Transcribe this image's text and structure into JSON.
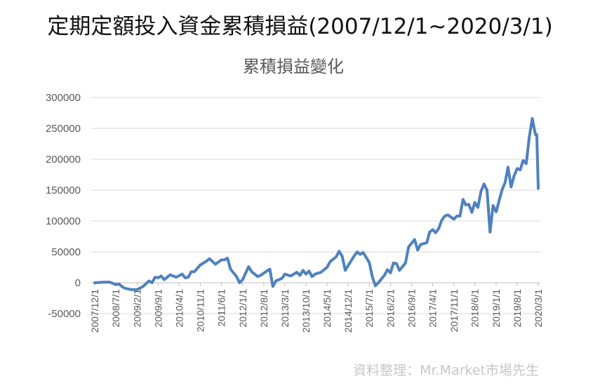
{
  "page_title": "定期定額投入資金累積損益(2007/12/1~2020/3/1)",
  "credit": "資料整理：Mr.Market市場先生",
  "colors": {
    "line": "#4f81bd",
    "grid": "#d9d9d9",
    "axis_text": "#595959",
    "credit": "#c7c7c7"
  },
  "chart_data": {
    "type": "line",
    "title": "累積損益變化",
    "xlabel": "",
    "ylabel": "",
    "ylim": [
      -50000,
      300000
    ],
    "y_ticks": [
      300000,
      250000,
      200000,
      150000,
      100000,
      50000,
      0,
      -50000
    ],
    "y_tick_labels": [
      "300000",
      "250000",
      "200000",
      "150000",
      "100000",
      "50000",
      "0",
      "-50000"
    ],
    "x_tick_labels": [
      "2007/12/1",
      "2008/7/1",
      "2009/2/1",
      "2009/9/1",
      "2010/4/1",
      "2010/11/1",
      "2011/6/1",
      "2012/1/1",
      "2012/8/1",
      "2013/3/1",
      "2013/10/1",
      "2014/5/1",
      "2014/12/1",
      "2015/7/1",
      "2016/2/1",
      "2016/9/1",
      "2017/4/1",
      "2017/11/1",
      "2018/6/1",
      "2019/1/1",
      "2019/8/1",
      "2020/3/1"
    ],
    "grid": true,
    "legend": "none",
    "series": [
      {
        "points": [
          [
            "2007/12/1",
            0
          ],
          [
            "2008/3/1",
            1000
          ],
          [
            "2008/5/1",
            1000
          ],
          [
            "2008/7/1",
            -3000
          ],
          [
            "2008/8/1",
            -2000
          ],
          [
            "2008/9/1",
            -6000
          ],
          [
            "2008/10/1",
            -9000
          ],
          [
            "2008/12/1",
            -11000
          ],
          [
            "2009/2/1",
            -11000
          ],
          [
            "2009/4/1",
            -6000
          ],
          [
            "2009/6/1",
            3000
          ],
          [
            "2009/7/1",
            0
          ],
          [
            "2009/8/1",
            9000
          ],
          [
            "2009/9/1",
            8000
          ],
          [
            "2009/10/1",
            11000
          ],
          [
            "2009/11/1",
            5000
          ],
          [
            "2010/1/1",
            13000
          ],
          [
            "2010/3/1",
            9000
          ],
          [
            "2010/5/1",
            14000
          ],
          [
            "2010/6/1",
            8000
          ],
          [
            "2010/7/1",
            9000
          ],
          [
            "2010/8/1",
            18000
          ],
          [
            "2010/9/1",
            18000
          ],
          [
            "2010/11/1",
            29000
          ],
          [
            "2011/1/1",
            35000
          ],
          [
            "2011/2/1",
            39000
          ],
          [
            "2011/4/1",
            30000
          ],
          [
            "2011/6/1",
            37000
          ],
          [
            "2011/7/1",
            37000
          ],
          [
            "2011/8/1",
            40000
          ],
          [
            "2011/9/1",
            22000
          ],
          [
            "2011/11/1",
            10000
          ],
          [
            "2011/12/1",
            0
          ],
          [
            "2012/1/1",
            5000
          ],
          [
            "2012/3/1",
            26000
          ],
          [
            "2012/4/1",
            18000
          ],
          [
            "2012/6/1",
            10000
          ],
          [
            "2012/7/1",
            12000
          ],
          [
            "2012/9/1",
            19000
          ],
          [
            "2012/10/1",
            22000
          ],
          [
            "2012/11/1",
            -6000
          ],
          [
            "2012/12/1",
            3000
          ],
          [
            "2013/2/1",
            7000
          ],
          [
            "2013/3/1",
            14000
          ],
          [
            "2013/5/1",
            11000
          ],
          [
            "2013/7/1",
            17000
          ],
          [
            "2013/8/1",
            12000
          ],
          [
            "2013/9/1",
            20000
          ],
          [
            "2013/10/1",
            14000
          ],
          [
            "2013/11/1",
            19000
          ],
          [
            "2013/12/1",
            10000
          ],
          [
            "2014/1/1",
            14000
          ],
          [
            "2014/3/1",
            17000
          ],
          [
            "2014/5/1",
            25000
          ],
          [
            "2014/6/1",
            34000
          ],
          [
            "2014/8/1",
            42000
          ],
          [
            "2014/9/1",
            51000
          ],
          [
            "2014/10/1",
            43000
          ],
          [
            "2014/11/1",
            20000
          ],
          [
            "2014/12/1",
            28000
          ],
          [
            "2015/2/1",
            44000
          ],
          [
            "2015/3/1",
            50000
          ],
          [
            "2015/4/1",
            46000
          ],
          [
            "2015/5/1",
            49000
          ],
          [
            "2015/7/1",
            33000
          ],
          [
            "2015/8/1",
            10000
          ],
          [
            "2015/9/1",
            -5000
          ],
          [
            "2015/10/1",
            0
          ],
          [
            "2015/12/1",
            12000
          ],
          [
            "2016/1/1",
            21000
          ],
          [
            "2016/2/1",
            16000
          ],
          [
            "2016/3/1",
            32000
          ],
          [
            "2016/4/1",
            31000
          ],
          [
            "2016/5/1",
            20000
          ],
          [
            "2016/7/1",
            32000
          ],
          [
            "2016/8/1",
            58000
          ],
          [
            "2016/10/1",
            70000
          ],
          [
            "2016/11/1",
            53000
          ],
          [
            "2016/12/1",
            62000
          ],
          [
            "2017/2/1",
            65000
          ],
          [
            "2017/3/1",
            82000
          ],
          [
            "2017/4/1",
            86000
          ],
          [
            "2017/5/1",
            81000
          ],
          [
            "2017/6/1",
            88000
          ],
          [
            "2017/7/1",
            101000
          ],
          [
            "2017/8/1",
            108000
          ],
          [
            "2017/9/1",
            110000
          ],
          [
            "2017/11/1",
            103000
          ],
          [
            "2017/12/1",
            108000
          ],
          [
            "2018/1/1",
            108000
          ],
          [
            "2018/2/1",
            135000
          ],
          [
            "2018/3/1",
            126000
          ],
          [
            "2018/4/1",
            127000
          ],
          [
            "2018/5/1",
            114000
          ],
          [
            "2018/6/1",
            130000
          ],
          [
            "2018/7/1",
            122000
          ],
          [
            "2018/8/1",
            148000
          ],
          [
            "2018/9/1",
            160000
          ],
          [
            "2018/10/1",
            150000
          ],
          [
            "2018/11/1",
            82000
          ],
          [
            "2018/12/1",
            125000
          ],
          [
            "2019/1/1",
            115000
          ],
          [
            "2019/3/1",
            150000
          ],
          [
            "2019/4/1",
            162000
          ],
          [
            "2019/5/1",
            187000
          ],
          [
            "2019/6/1",
            155000
          ],
          [
            "2019/7/1",
            173000
          ],
          [
            "2019/8/1",
            185000
          ],
          [
            "2019/9/1",
            183000
          ],
          [
            "2019/10/1",
            198000
          ],
          [
            "2019/11/1",
            193000
          ],
          [
            "2019/12/1",
            235000
          ],
          [
            "2020/1/1",
            266000
          ],
          [
            "2020/2/1",
            240000
          ],
          [
            "2020/2/15",
            240000
          ],
          [
            "2020/3/1",
            153000
          ]
        ]
      }
    ]
  }
}
